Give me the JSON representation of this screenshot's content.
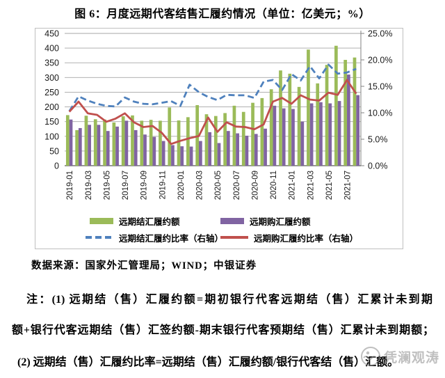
{
  "title": "图 6：月度远期代客结售汇履约情况（单位：亿美元；%）",
  "source_line": "数据来源：国家外汇管理局；WIND；中银证券",
  "notes": {
    "line1": "注：(1) 远期结（售）汇履约额=期初银行代客远期结（售）汇累计未到期",
    "line2": "额+银行代客远期结（售）汇签约额-期末银行代客预期结（售）汇累计未到期额；",
    "line3": "(2) 远期结（售）汇履约比率=远期结（售）汇履约额/银行代客结（售）汇额。"
  },
  "watermark_text": "凭澜观涛",
  "chart_data": {
    "type": "bar",
    "subtype": "combo-bar-line-dual-axis",
    "categories": [
      "2019-01",
      "2019-02",
      "2019-03",
      "2019-04",
      "2019-05",
      "2019-06",
      "2019-07",
      "2019-08",
      "2019-09",
      "2019-10",
      "2019-11",
      "2019-12",
      "2020-01",
      "2020-02",
      "2020-03",
      "2020-04",
      "2020-05",
      "2020-06",
      "2020-07",
      "2020-08",
      "2020-09",
      "2020-10",
      "2020-11",
      "2020-12",
      "2021-01",
      "2021-02",
      "2021-03",
      "2021-04",
      "2021-05",
      "2021-06",
      "2021-07",
      "2021-08"
    ],
    "x_tick_labels": [
      "2019-01",
      "2019-03",
      "2019-05",
      "2019-07",
      "2019-09",
      "2019-11",
      "2020-01",
      "2020-03",
      "2020-05",
      "2020-07",
      "2020-09",
      "2020-11",
      "2021-01",
      "2021-03",
      "2021-05",
      "2021-07"
    ],
    "series": [
      {
        "name": "远期结汇履约额",
        "type": "bar",
        "axis": "left",
        "color": "#9bbb59",
        "values": [
          172,
          121,
          170,
          158,
          157,
          147,
          168,
          171,
          153,
          156,
          153,
          198,
          154,
          165,
          206,
          175,
          169,
          179,
          204,
          183,
          214,
          230,
          260,
          324,
          313,
          268,
          395,
          280,
          343,
          408,
          360,
          368
        ]
      },
      {
        "name": "远期购汇履约额",
        "type": "bar",
        "axis": "left",
        "color": "#8064a2",
        "values": [
          157,
          128,
          139,
          139,
          118,
          133,
          153,
          121,
          106,
          98,
          84,
          70,
          66,
          65,
          84,
          114,
          77,
          118,
          110,
          102,
          108,
          126,
          204,
          195,
          193,
          150,
          212,
          216,
          212,
          220,
          310,
          240
        ]
      },
      {
        "name": "远期结汇履约比率（右轴）",
        "type": "line",
        "style": "dashed",
        "axis": "right",
        "color": "#4f81bd",
        "values": [
          10.3,
          13.1,
          12.3,
          11.7,
          11.3,
          11.2,
          12.9,
          12.1,
          11.7,
          11.6,
          11.9,
          12.2,
          11.3,
          15.3,
          13.9,
          13.0,
          12.4,
          13.4,
          13.3,
          13.3,
          12.8,
          15.9,
          16.2,
          14.3,
          17.3,
          16.1,
          18.8,
          16.5,
          19.1,
          17.4,
          17.6,
          18.3
        ]
      },
      {
        "name": "远期购汇履约比率（右轴）",
        "type": "line",
        "style": "solid",
        "axis": "right",
        "color": "#c0504d",
        "values": [
          10.2,
          12.1,
          9.9,
          9.6,
          8.3,
          8.9,
          9.9,
          8.2,
          7.3,
          7.5,
          6.2,
          4.1,
          4.7,
          5.2,
          5.6,
          9.1,
          6.4,
          8.2,
          7.4,
          7.3,
          6.9,
          7.8,
          12.1,
          12.8,
          11.7,
          13.3,
          12.5,
          12.3,
          13.8,
          13.4,
          16.2,
          13.6
        ]
      }
    ],
    "left_axis": {
      "min": 0,
      "max": 450,
      "grid_step": 50,
      "tick_labels": [
        "0",
        "50",
        "100",
        "150",
        "200",
        "250",
        "300",
        "350",
        "400",
        "450"
      ]
    },
    "right_axis": {
      "min": 0,
      "max": 25,
      "label_step": 5,
      "tick_labels": [
        "0.0%",
        "5.0%",
        "10.0%",
        "15.0%",
        "20.0%",
        "25.0%"
      ]
    },
    "grid": true,
    "legend_position": "bottom",
    "colors": {
      "grid": "#a6a6a6",
      "axis": "#808080",
      "tick_text": "#1a1a1a"
    }
  }
}
